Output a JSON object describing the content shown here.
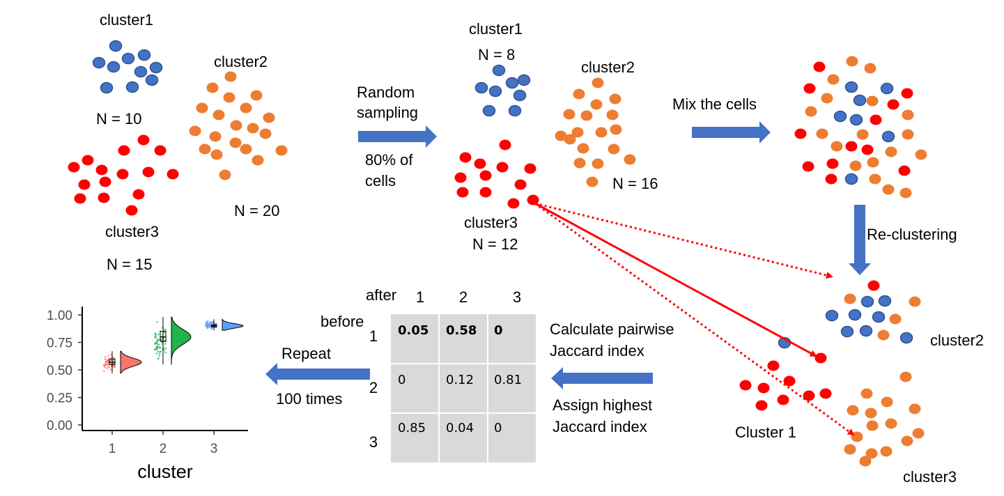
{
  "colors": {
    "blue": "#4472c4",
    "orange": "#ed7d31",
    "red": "#ff0000",
    "arrow_blue": "#4472c4",
    "grid_bg": "#d9d9d9",
    "violin_1": "#f8766d",
    "violin_2": "#22b34a",
    "violin_3": "#619cff"
  },
  "original": {
    "cluster1": {
      "name": "cluster1",
      "n": "N = 10"
    },
    "cluster2": {
      "name": "cluster2",
      "n": "N = 20"
    },
    "cluster3": {
      "name": "cluster3",
      "n": "N = 15"
    }
  },
  "sampling": {
    "line1": "Random",
    "line2": "sampling",
    "line3": "80% of",
    "line4": "cells"
  },
  "sampled": {
    "cluster1": {
      "name": "cluster1",
      "n": "N = 8"
    },
    "cluster2": {
      "name": "cluster2",
      "n": "N = 16"
    },
    "cluster3": {
      "name": "cluster3",
      "n": "N = 12"
    }
  },
  "mix_label": "Mix the cells",
  "recluster_label": "Re-clustering",
  "reclustered": {
    "cluster1": "Cluster 1",
    "cluster2": "cluster2",
    "cluster3": "cluster3"
  },
  "jaccard": {
    "line1": "Calculate pairwise",
    "line2": "Jaccard index",
    "line3": "Assign highest",
    "line4": "Jaccard index"
  },
  "table": {
    "after_label": "after",
    "before_label": "before",
    "col_headers": [
      "1",
      "2",
      "3"
    ],
    "row_headers": [
      "1",
      "2",
      "3"
    ],
    "cells": [
      [
        {
          "text": "0.05",
          "color": "#000000",
          "bold": true
        },
        {
          "text": "0.58",
          "color": "#4472c4",
          "bold": true
        },
        {
          "text": "0",
          "color": "#000000",
          "bold": true
        }
      ],
      [
        {
          "text": "0",
          "color": "#000000",
          "bold": false
        },
        {
          "text": "0.12",
          "color": "#000000",
          "bold": false
        },
        {
          "text": "0.81",
          "color": "#ed7d31",
          "bold": false
        }
      ],
      [
        {
          "text": "0.85",
          "color": "#ff0000",
          "bold": false
        },
        {
          "text": "0.04",
          "color": "#000000",
          "bold": false
        },
        {
          "text": "0",
          "color": "#000000",
          "bold": false
        }
      ]
    ]
  },
  "repeat": {
    "line1": "Repeat",
    "line2": "100 times"
  },
  "chart_data": {
    "type": "violin",
    "xlabel": "cluster",
    "ylabel": "",
    "categories": [
      "1",
      "2",
      "3"
    ],
    "ylim": [
      0,
      1
    ],
    "yticks": [
      "0.00",
      "0.25",
      "0.50",
      "0.75",
      "1.00"
    ],
    "series": [
      {
        "category": "1",
        "median": 0.57,
        "q1": 0.55,
        "q3": 0.6,
        "min": 0.47,
        "max": 0.67
      },
      {
        "category": "2",
        "median": 0.8,
        "q1": 0.76,
        "q3": 0.85,
        "min": 0.55,
        "max": 0.98
      },
      {
        "category": "3",
        "median": 0.9,
        "q1": 0.89,
        "q3": 0.91,
        "min": 0.86,
        "max": 0.96
      }
    ]
  }
}
